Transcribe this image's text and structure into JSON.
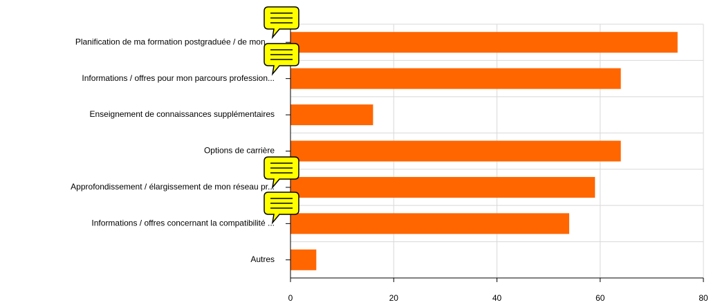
{
  "chart_data": {
    "type": "bar",
    "orientation": "horizontal",
    "categories": [
      "Planification de ma formation postgraduée / de mon ...",
      "Informations / offres pour mon parcours profession...",
      "Enseignement de connaissances supplémentaires",
      "Options de carrière",
      "Approfondissement / élargissement de mon réseau pr...",
      "Informations / offres concernant la compatibilité ...",
      "Autres"
    ],
    "values": [
      75,
      64,
      16,
      64,
      59,
      54,
      5
    ],
    "color": "#ff6600",
    "xlim": [
      0,
      80
    ],
    "xticks": [
      0,
      20,
      40,
      60,
      80
    ],
    "grid": true
  }
}
